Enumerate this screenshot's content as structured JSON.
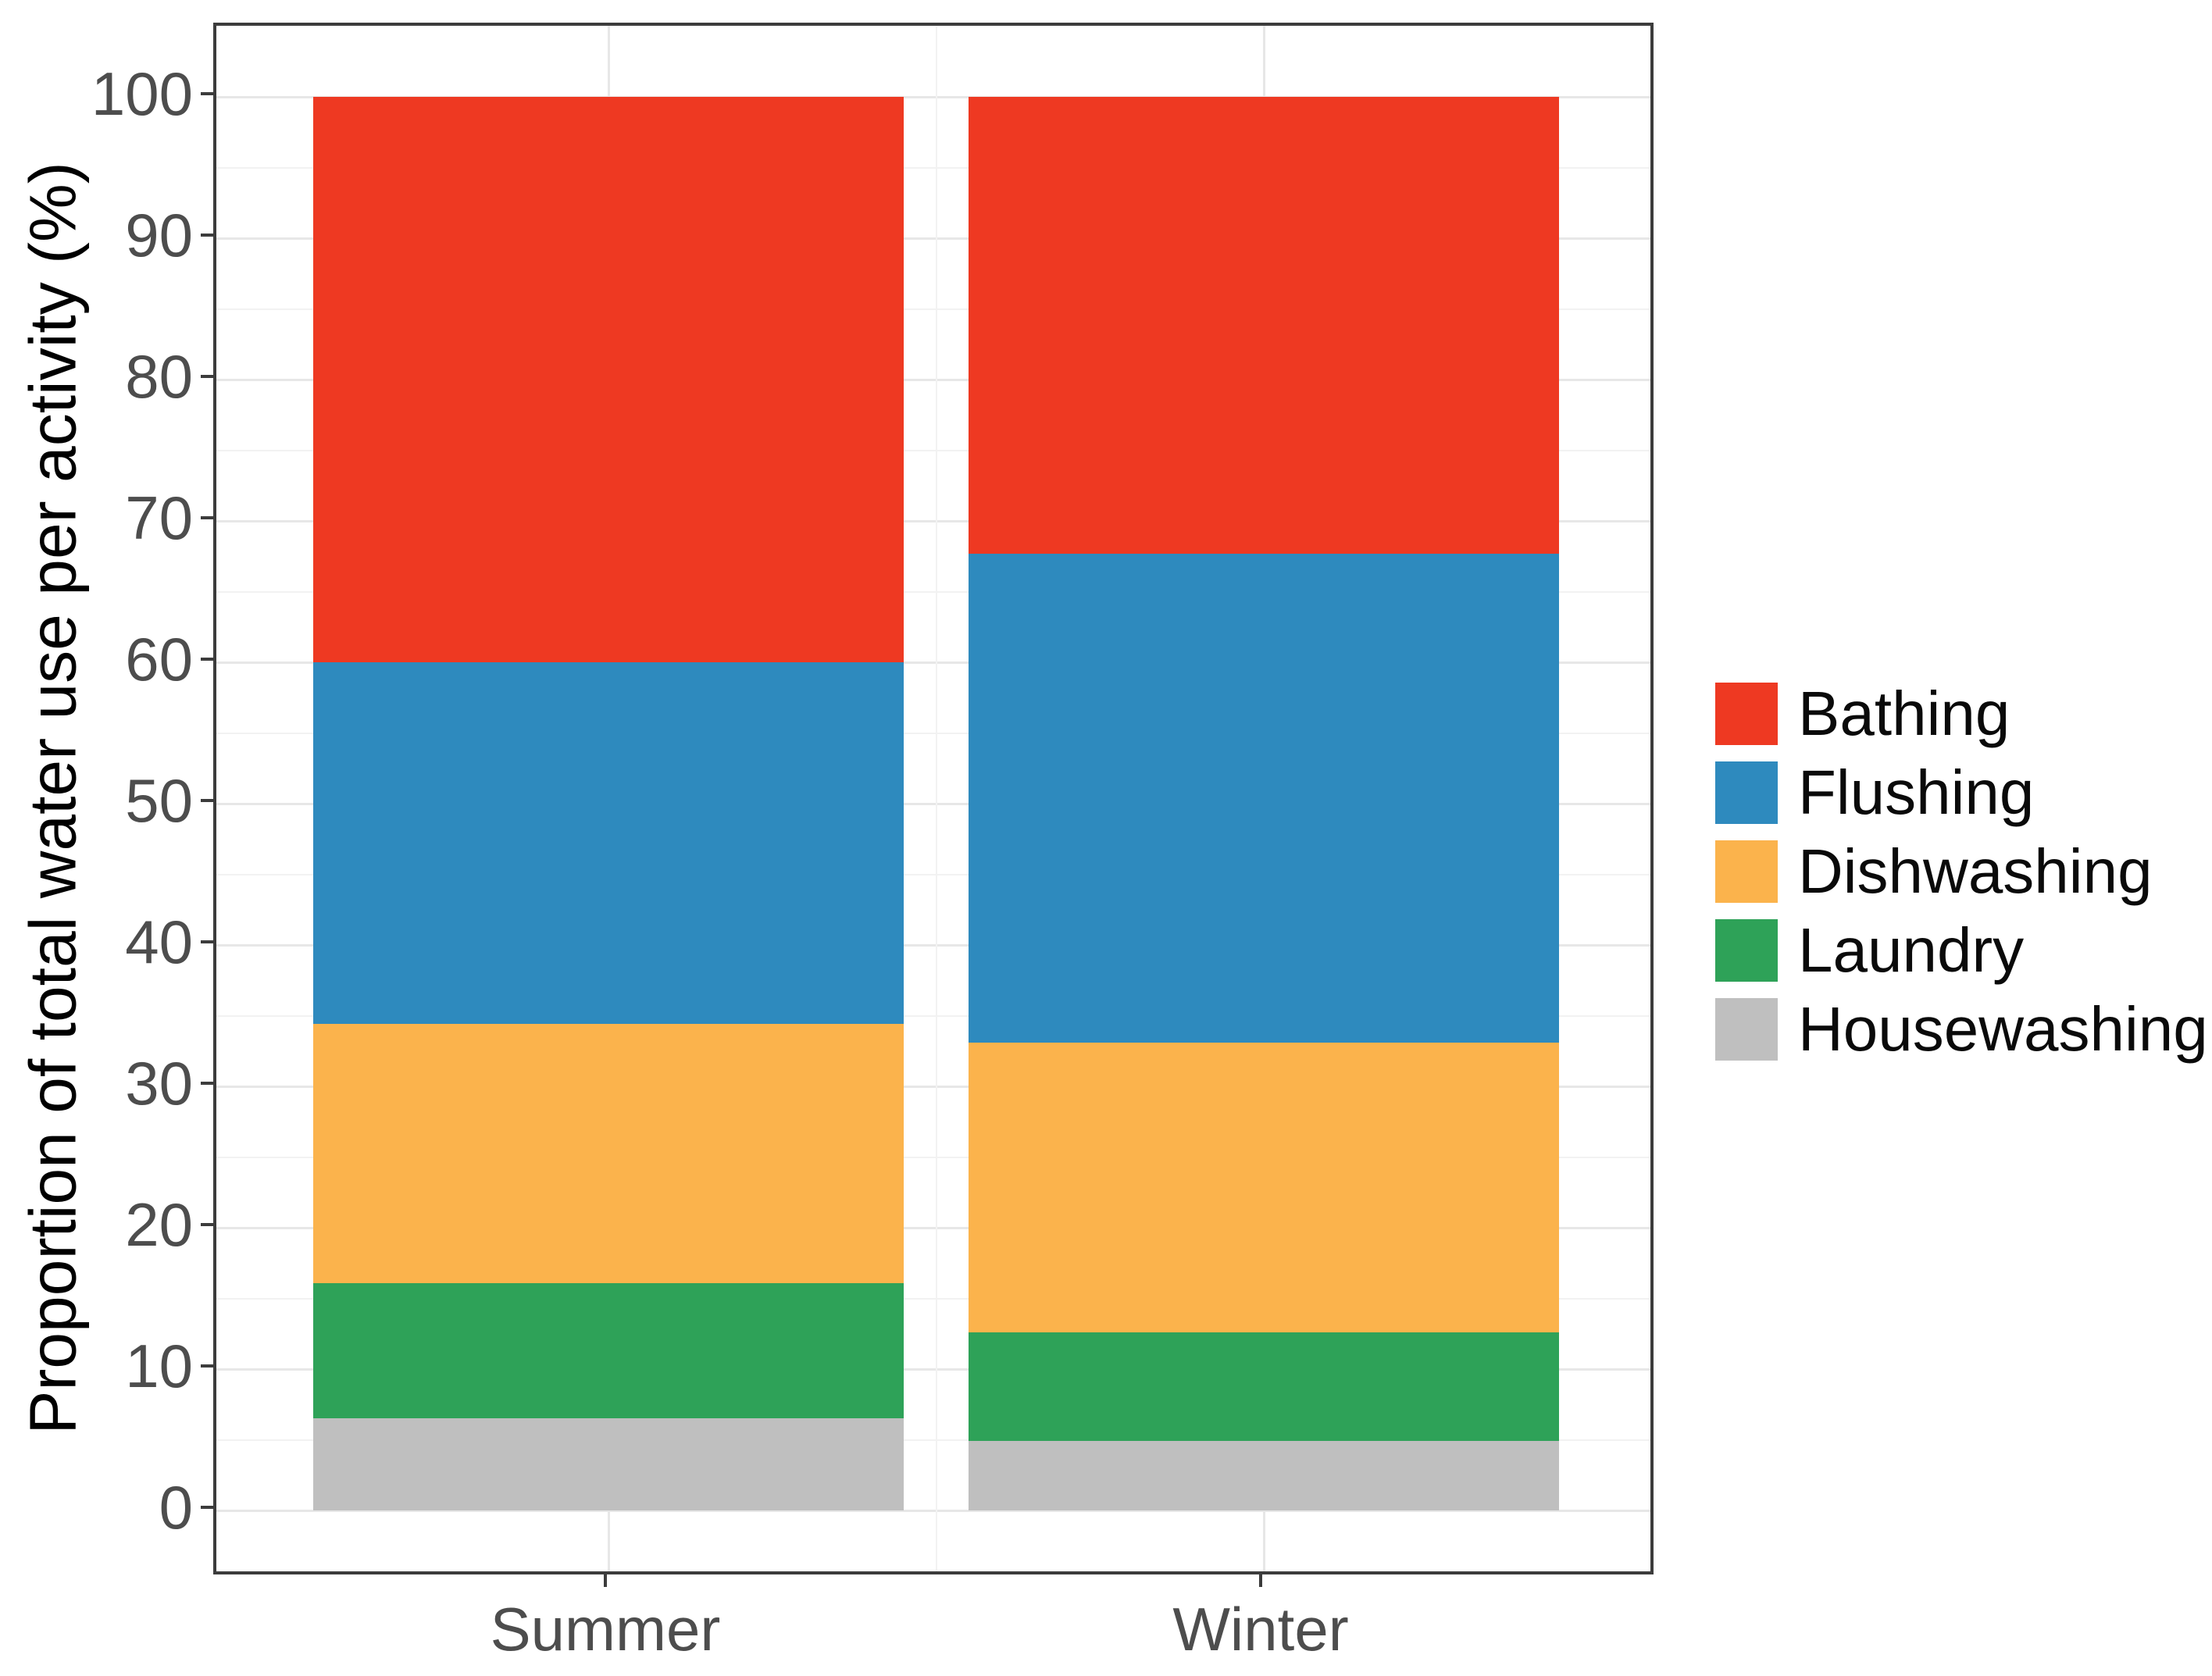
{
  "chart_data": {
    "type": "bar",
    "stacked": true,
    "orientation": "vertical",
    "title": "",
    "xlabel": "",
    "ylabel": "Proportion of total water use per activity (%)",
    "categories": [
      "Summer",
      "Winter"
    ],
    "series": [
      {
        "name": "Bathing",
        "color": "#EE3922",
        "values": [
          40.0,
          32.3
        ]
      },
      {
        "name": "Flushing",
        "color": "#2E8ABE",
        "values": [
          25.6,
          34.6
        ]
      },
      {
        "name": "Dishwashing",
        "color": "#FBB34C",
        "values": [
          18.3,
          20.5
        ]
      },
      {
        "name": "Laundry",
        "color": "#2EA258",
        "values": [
          9.6,
          7.7
        ]
      },
      {
        "name": "Housewashing",
        "color": "#BFBFBF",
        "values": [
          6.5,
          4.9
        ]
      }
    ],
    "stack_order_bottom_to_top": [
      "Housewashing",
      "Laundry",
      "Dishwashing",
      "Flushing",
      "Bathing"
    ],
    "ylim": [
      0,
      100
    ],
    "yticks": [
      0,
      10,
      20,
      30,
      40,
      50,
      60,
      70,
      80,
      90,
      100
    ],
    "minor_gridlines_every": 5,
    "grid": true,
    "legend": {
      "position": "right",
      "entries": [
        "Bathing",
        "Flushing",
        "Dishwashing",
        "Laundry",
        "Housewashing"
      ]
    }
  },
  "colors": {
    "background": "#FFFFFF",
    "panel_border": "#3C3C3C",
    "major_grid": "#E7E7E7",
    "minor_grid": "#F2F2F2",
    "tick_mark": "#3C3C3C",
    "tick_text": "#4D4D4D",
    "axis_title_text": "#000000",
    "legend_text": "#0A0A0A"
  }
}
